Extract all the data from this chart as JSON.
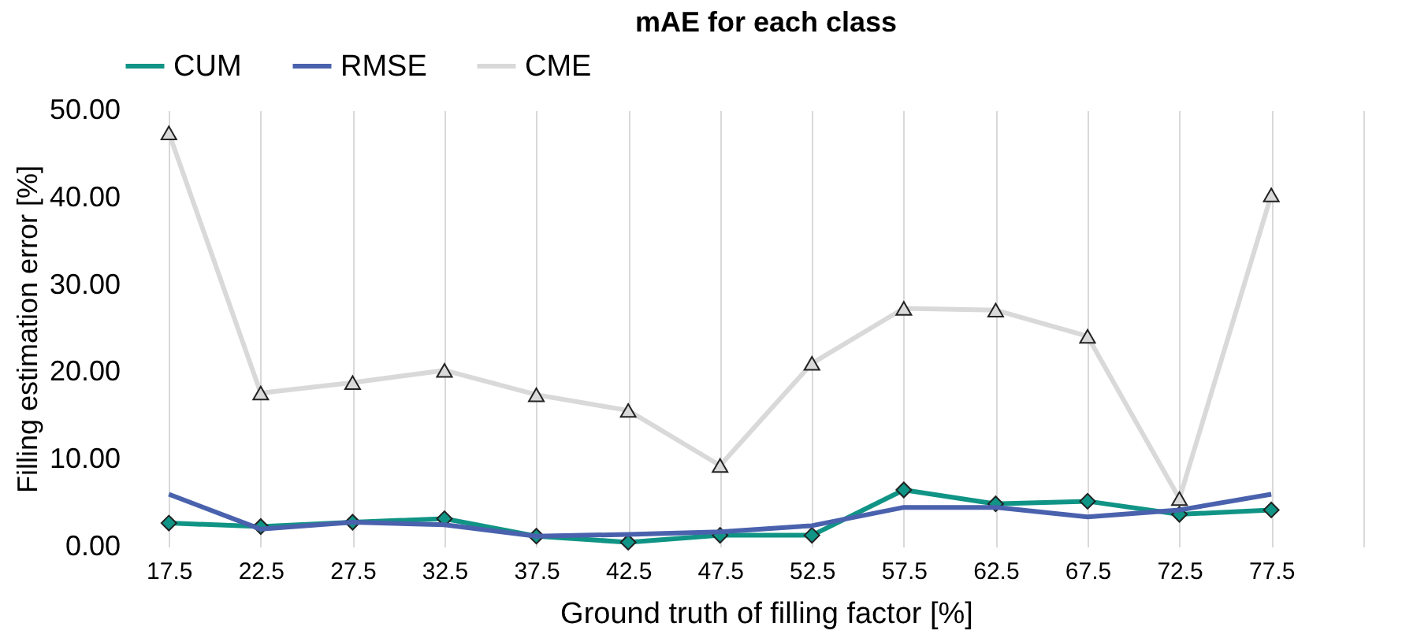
{
  "chart_data": {
    "type": "line",
    "title": "mAE for each class",
    "xlabel": "Ground truth of filling factor [%]",
    "ylabel": "Filling estimation error [%]",
    "categories": [
      "17.5",
      "22.5",
      "27.5",
      "32.5",
      "37.5",
      "42.5",
      "47.5",
      "52.5",
      "57.5",
      "62.5",
      "67.5",
      "72.5",
      "77.5",
      null
    ],
    "series": [
      {
        "name": "CUM",
        "color": "#109485",
        "marker": "diamond",
        "values": [
          2.7,
          2.3,
          2.8,
          3.2,
          1.2,
          0.5,
          1.3,
          1.3,
          6.5,
          4.9,
          5.2,
          3.7,
          4.2,
          null
        ]
      },
      {
        "name": "RMSE",
        "color": "#4a62ad",
        "marker": "none",
        "values": [
          6.0,
          2.0,
          2.8,
          2.5,
          1.2,
          1.4,
          1.7,
          2.4,
          4.5,
          4.5,
          3.4,
          4.2,
          6.0,
          null
        ]
      },
      {
        "name": "CME",
        "color": "#d9d9d9",
        "marker": "triangle",
        "values": [
          47.4,
          17.6,
          18.8,
          20.2,
          17.4,
          15.6,
          9.3,
          21.0,
          27.3,
          27.1,
          24.1,
          5.5,
          40.3,
          null
        ]
      }
    ],
    "ylim": [
      0,
      50
    ],
    "yticks": [
      {
        "value": 0,
        "label": "0.00"
      },
      {
        "value": 10,
        "label": "10.00"
      },
      {
        "value": 20,
        "label": "20.00"
      },
      {
        "value": 30,
        "label": "30.00"
      },
      {
        "value": 40,
        "label": "40.00"
      },
      {
        "value": 50,
        "label": "50.00"
      }
    ],
    "grid": "x",
    "legend": "top"
  }
}
